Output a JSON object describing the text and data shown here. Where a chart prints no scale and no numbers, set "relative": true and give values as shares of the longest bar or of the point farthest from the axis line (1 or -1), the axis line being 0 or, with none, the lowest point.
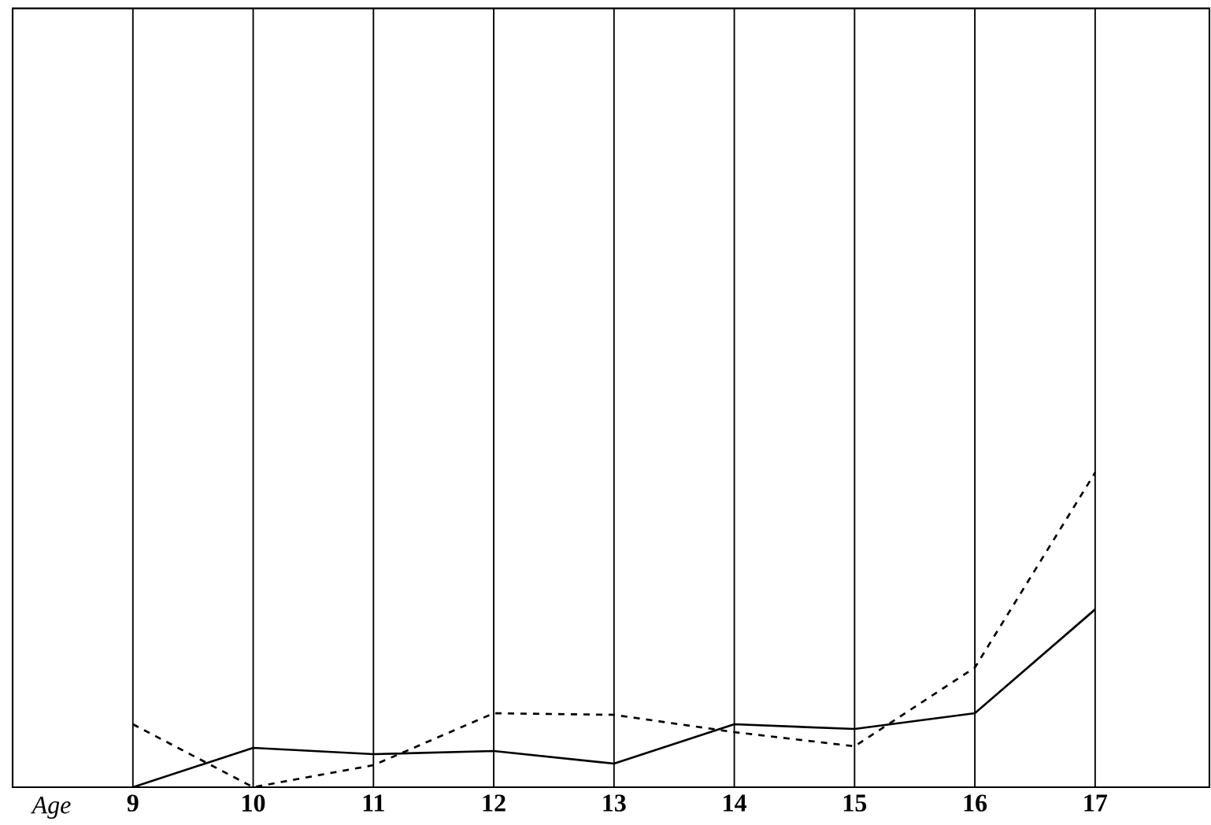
{
  "chart_data": {
    "type": "line",
    "xlabel": "Age",
    "categories": [
      "9",
      "10",
      "11",
      "12",
      "13",
      "14",
      "15",
      "16",
      "17"
    ],
    "relative": true,
    "grid": "x",
    "marker": "none",
    "series": [
      {
        "color": "#000000",
        "line_style": "solid",
        "values": [
          0,
          0.125,
          0.105,
          0.115,
          0.075,
          0.2,
          0.185,
          0.235,
          0.565
        ]
      },
      {
        "color": "#000000",
        "line_style": "dashed",
        "values": [
          0.2,
          0,
          0.07,
          0.235,
          0.23,
          0.175,
          0.13,
          0.38,
          1
        ]
      }
    ]
  }
}
